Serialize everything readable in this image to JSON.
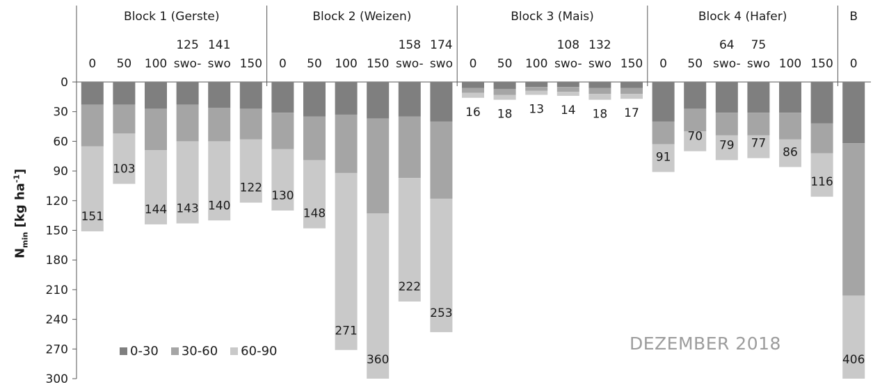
{
  "chart_data": {
    "type": "bar",
    "stacked": true,
    "orientation": "vertical-down",
    "ylabel_main": "N",
    "ylabel_sub": "min",
    "ylabel_unit_pre": " [kg ha",
    "ylabel_unit_sup": "-1",
    "ylabel_unit_post": "]",
    "ylim": [
      0,
      300
    ],
    "yticks": [
      "0",
      "30",
      "60",
      "90",
      "120",
      "150",
      "180",
      "210",
      "240",
      "270",
      "300"
    ],
    "annotation": "DEZEMBER 2018",
    "legend_position": "bottom-left",
    "series": [
      {
        "name": "0-30",
        "color": "#7f7f7f"
      },
      {
        "name": "30-60",
        "color": "#a5a5a5"
      },
      {
        "name": "60-90",
        "color": "#c9c9c9"
      }
    ],
    "blocks": [
      {
        "name": "Block 1 (Gerste)",
        "bars": [
          {
            "l1": "",
            "l2": "0",
            "values": [
              23,
              42,
              86
            ],
            "total": "151"
          },
          {
            "l1": "",
            "l2": "50",
            "values": [
              23,
              29,
              51
            ],
            "total": "103"
          },
          {
            "l1": "",
            "l2": "100",
            "values": [
              27,
              42,
              75
            ],
            "total": "144"
          },
          {
            "l1": "125",
            "l2": "swo-",
            "values": [
              23,
              37,
              83
            ],
            "total": "143"
          },
          {
            "l1": "141",
            "l2": "swo",
            "values": [
              26,
              34,
              80
            ],
            "total": "140"
          },
          {
            "l1": "",
            "l2": "150",
            "values": [
              27,
              31,
              64
            ],
            "total": "122"
          }
        ]
      },
      {
        "name": "Block 2 (Weizen)",
        "bars": [
          {
            "l1": "",
            "l2": "0",
            "values": [
              31,
              37,
              62
            ],
            "total": "130"
          },
          {
            "l1": "",
            "l2": "50",
            "values": [
              35,
              44,
              69
            ],
            "total": "148"
          },
          {
            "l1": "",
            "l2": "100",
            "values": [
              33,
              59,
              179
            ],
            "total": "271"
          },
          {
            "l1": "",
            "l2": "150",
            "values": [
              37,
              96,
              227
            ],
            "total": "360"
          },
          {
            "l1": "158",
            "l2": "swo-",
            "values": [
              35,
              62,
              125
            ],
            "total": "222"
          },
          {
            "l1": "174",
            "l2": "swo",
            "values": [
              40,
              78,
              135
            ],
            "total": "253"
          }
        ]
      },
      {
        "name": "Block 3 (Mais)",
        "bars": [
          {
            "l1": "",
            "l2": "0",
            "values": [
              6,
              5,
              5
            ],
            "total": "16"
          },
          {
            "l1": "",
            "l2": "50",
            "values": [
              7,
              6,
              5
            ],
            "total": "18"
          },
          {
            "l1": "",
            "l2": "100",
            "values": [
              5,
              4,
              4
            ],
            "total": "13"
          },
          {
            "l1": "108",
            "l2": "swo-",
            "values": [
              5,
              5,
              4
            ],
            "total": "14"
          },
          {
            "l1": "132",
            "l2": "swo",
            "values": [
              6,
              6,
              6
            ],
            "total": "18"
          },
          {
            "l1": "",
            "l2": "150",
            "values": [
              6,
              6,
              5
            ],
            "total": "17"
          }
        ]
      },
      {
        "name": "Block 4 (Hafer)",
        "bars": [
          {
            "l1": "",
            "l2": "0",
            "values": [
              40,
              23,
              28
            ],
            "total": "91"
          },
          {
            "l1": "",
            "l2": "50",
            "values": [
              27,
              23,
              20
            ],
            "total": "70"
          },
          {
            "l1": "64",
            "l2": "swo-",
            "values": [
              31,
              23,
              25
            ],
            "total": "79"
          },
          {
            "l1": "75",
            "l2": "swo",
            "values": [
              31,
              23,
              23
            ],
            "total": "77"
          },
          {
            "l1": "",
            "l2": "100",
            "values": [
              31,
              27,
              28
            ],
            "total": "86"
          },
          {
            "l1": "",
            "l2": "150",
            "values": [
              42,
              30,
              44
            ],
            "total": "116"
          }
        ]
      },
      {
        "name": "B",
        "bars": [
          {
            "l1": "",
            "l2": "0",
            "values": [
              62,
              154,
              190
            ],
            "total": "406"
          }
        ]
      }
    ]
  }
}
